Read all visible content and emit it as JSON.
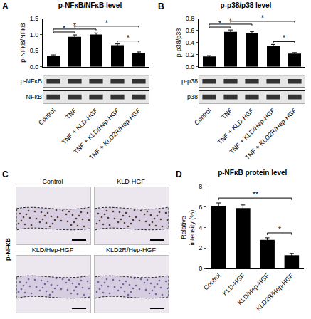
{
  "chart_data": [
    {
      "type": "bar",
      "panel": "A",
      "title": "p-NFκB/NFκB level",
      "y_label": "p-NFκB/NFκB",
      "categories": [
        "Control",
        "TNF",
        "TNF + KLD-HGF",
        "TNF + KLD/Hep-HGF",
        "TNF + KLD2R/Hep-HGF"
      ],
      "values": [
        0.35,
        0.93,
        1.0,
        0.67,
        0.43
      ],
      "errors": [
        0.02,
        0.06,
        0.05,
        0.04,
        0.03
      ],
      "color": "#000000",
      "ylim": [
        0,
        1.5
      ],
      "yticks": [
        {
          "value": 0,
          "label": "0.0"
        },
        0.5,
        {
          "value": 1,
          "label": "1.0"
        },
        1.5
      ],
      "grid": false,
      "blot_labels": [
        "p-NFκB",
        "NFκB"
      ],
      "significance": [
        {
          "from": 3,
          "to": 4,
          "label": "*"
        },
        {
          "from": 0,
          "to": 1,
          "label": "*"
        },
        {
          "from": 0,
          "to": 2,
          "label": "*"
        },
        {
          "from": 1,
          "to": 4,
          "label": "*"
        }
      ]
    },
    {
      "type": "bar",
      "panel": "B",
      "title": "p-p38/p38 level",
      "y_label": "p-p38/p38",
      "categories": [
        "Control",
        "TNF",
        "TNF + KLD-HGF",
        "TNF + KLD/Hep-HGF",
        "TNF + KLD2R/Hep-HGF"
      ],
      "values": [
        0.17,
        0.58,
        0.56,
        0.35,
        0.22
      ],
      "errors": [
        0.015,
        0.03,
        0.025,
        0.02,
        0.015
      ],
      "color": "#000000",
      "ylim": [
        0,
        0.8
      ],
      "yticks": [
        {
          "value": 0,
          "label": "0.0"
        },
        0.2,
        0.4,
        0.6,
        0.8
      ],
      "grid": false,
      "blot_labels": [
        "p-p38",
        "p38"
      ],
      "significance": [
        {
          "from": 3,
          "to": 4,
          "label": "*"
        },
        {
          "from": 0,
          "to": 1,
          "label": "*"
        },
        {
          "from": 0,
          "to": 2,
          "label": "*"
        },
        {
          "from": 1,
          "to": 4,
          "label": "*"
        }
      ]
    },
    {
      "type": "bar",
      "panel": "D",
      "title": "p-NFκB protein level",
      "y_label": "Relative intensity (%)",
      "categories": [
        "Control",
        "KLD-HGF",
        "KLD/Hep-HGF",
        "KLD2R/Hep-HGF"
      ],
      "values": [
        6.1,
        5.9,
        2.8,
        1.3
      ],
      "errors": [
        0.3,
        0.3,
        0.2,
        0.15
      ],
      "color": "#000000",
      "ylim": [
        0,
        8
      ],
      "yticks": [
        0,
        2,
        4,
        6,
        8
      ],
      "grid": false,
      "significance": [
        {
          "from": 2,
          "to": 3,
          "label": "*"
        },
        {
          "from": 0,
          "to": 3,
          "label": "**"
        }
      ]
    }
  ],
  "images": {
    "panel": "C",
    "row_label": "p-NFκB",
    "titles": [
      "Control",
      "KLD-HGF",
      "KLD/Hep-HGF",
      "KLD2R/Hep-HGF"
    ]
  }
}
